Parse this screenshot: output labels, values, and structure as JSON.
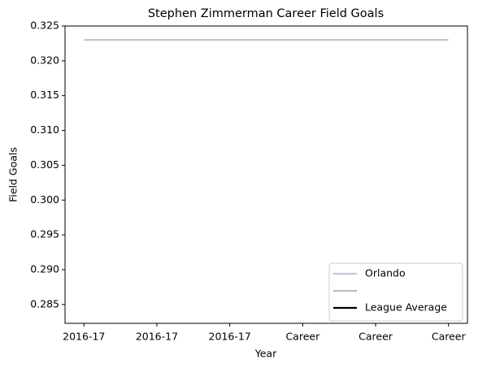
{
  "chart_data": {
    "type": "line",
    "title": "Stephen Zimmerman Career Field Goals",
    "xlabel": "Year",
    "ylabel": "Field Goals",
    "categories": [
      "2016-17",
      "2016-17",
      "2016-17",
      "Career",
      "Career",
      "Career"
    ],
    "series": [
      {
        "name": "Orlando",
        "color": "#c0c8d0",
        "values": [
          0.323,
          0.323,
          0.323,
          0.323,
          0.323,
          0.323
        ]
      },
      {
        "color": "#bdbdbd",
        "values": [
          null,
          null,
          null,
          null,
          null,
          null
        ]
      },
      {
        "name": "League Average",
        "color": "#000000",
        "values": [
          null,
          null,
          null,
          null,
          null,
          null
        ]
      }
    ],
    "ylim": [
      0.2823,
      0.325
    ],
    "yticks": [
      0.285,
      {
        "value": 0.29,
        "label": "0.290"
      },
      0.295,
      {
        "value": 0.3,
        "label": "0.300"
      },
      0.305,
      {
        "value": 0.31,
        "label": "0.310"
      },
      0.315,
      {
        "value": 0.32,
        "label": "0.320"
      },
      0.325
    ],
    "grid": false,
    "legend": "lower right"
  }
}
